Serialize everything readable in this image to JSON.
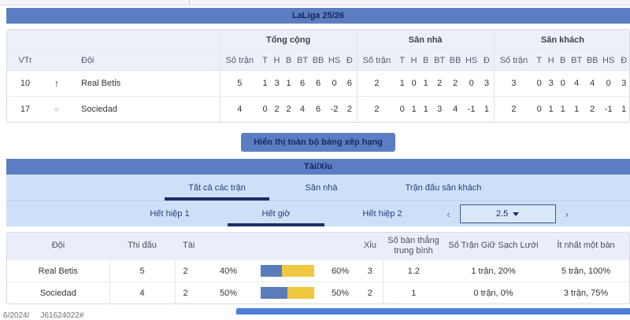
{
  "league_header": {
    "title": "LaLiga 25/26"
  },
  "standings": {
    "group_headers": {
      "total": "Tổng cộng",
      "home": "Sân nhà",
      "away": "Sân khách"
    },
    "columns": {
      "pos": "VTr",
      "team": "Đội",
      "stat_cols": [
        "Số trận",
        "T",
        "H",
        "B",
        "BT",
        "BB",
        "HS",
        "Đ"
      ]
    },
    "rows": [
      {
        "pos": "10",
        "trend_glyph": "↑",
        "team": "Real Betis",
        "total": [
          "5",
          "1",
          "3",
          "1",
          "6",
          "6",
          "0",
          "6"
        ],
        "home": [
          "2",
          "1",
          "0",
          "1",
          "2",
          "2",
          "0",
          "3"
        ],
        "away": [
          "3",
          "0",
          "3",
          "0",
          "4",
          "4",
          "0",
          "3"
        ]
      },
      {
        "pos": "17",
        "trend_glyph": "○",
        "team": "Sociedad",
        "total": [
          "4",
          "0",
          "2",
          "2",
          "4",
          "6",
          "-2",
          "2"
        ],
        "home": [
          "2",
          "0",
          "1",
          "1",
          "3",
          "4",
          "-1",
          "1"
        ],
        "away": [
          "2",
          "0",
          "1",
          "1",
          "1",
          "2",
          "-1",
          "1"
        ]
      }
    ],
    "show_all_button": "Hiển thị toàn bộ bảng xếp hạng"
  },
  "over_under": {
    "title": "Tài/Xỉu",
    "scope_tabs": [
      {
        "label": "Tất cả các trận",
        "active": true
      },
      {
        "label": "Sân nhà",
        "active": false
      },
      {
        "label": "Trận đấu sân khách",
        "active": false
      }
    ],
    "period_tabs": [
      {
        "label": "Hết hiệp 1",
        "active": false
      },
      {
        "label": "Hết giờ",
        "active": true
      },
      {
        "label": "Hết hiệp 2",
        "active": false
      }
    ],
    "line_selector": {
      "prev": "‹",
      "value": "2.5",
      "next": "›"
    },
    "table": {
      "headers": {
        "team": "Đội",
        "played": "Thi đấu",
        "over": "Tài",
        "under": "Xỉu",
        "avg_goals": "Số bàn thắng trung bình",
        "clean_sheets": "Số Trận Giữ Sạch Lưới",
        "at_least_one_goal": "Ít nhất một bàn"
      },
      "rows": [
        {
          "team": "Real Betis",
          "played": "5",
          "over_count": "2",
          "over_pct": "40%",
          "over_ratio": 40,
          "under_pct": "60%",
          "under_ratio": 60,
          "under_count": "3",
          "avg_goals": "1.2",
          "clean_sheets": "1 trận, 20%",
          "at_least_one_goal": "5 trận, 100%"
        },
        {
          "team": "Sociedad",
          "played": "4",
          "over_count": "2",
          "over_pct": "50%",
          "over_ratio": 50,
          "under_pct": "50%",
          "under_ratio": 50,
          "under_count": "2",
          "avg_goals": "1",
          "clean_sheets": "0 trận, 0%",
          "at_least_one_goal": "3 trận, 75%"
        }
      ]
    }
  },
  "footer": {
    "left": "6/2024/",
    "right": "J61624022#"
  },
  "colors": {
    "header_blue": "#5b7ec2",
    "band_blue": "#cde0f7",
    "accent_navy": "#1d2d66",
    "bar_over_blue": "#5b7cba",
    "bar_under_yellow": "#efc83f",
    "bottom_bar_blue": "#4a80d8"
  }
}
